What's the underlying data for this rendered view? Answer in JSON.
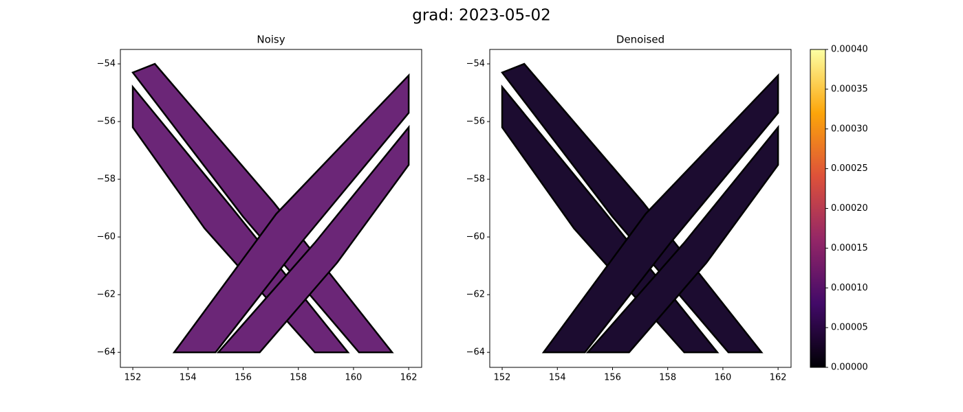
{
  "title": "grad: 2023-05-02",
  "chart_data": [
    {
      "type": "swath",
      "title": "Noisy",
      "color": "#6b2677",
      "xlim": [
        151.55,
        162.47
      ],
      "ylim": [
        -64.52,
        -53.5
      ],
      "xticks": [
        152,
        154,
        156,
        158,
        160,
        162
      ],
      "yticks": [
        {
          "value": -54,
          "label": "−54"
        },
        {
          "value": -56,
          "label": "−56"
        },
        {
          "value": -58,
          "label": "−58"
        },
        {
          "value": -60,
          "label": "−60"
        },
        {
          "value": -62,
          "label": "−62"
        },
        {
          "value": -64,
          "label": "−64"
        }
      ],
      "swaths": [
        {
          "x": [
            152,
            152.8,
            157.1,
            161.4,
            160.2,
            156.0
          ],
          "y": [
            -54.3,
            -54,
            -58.8,
            -64,
            -64,
            -59.3
          ]
        },
        {
          "x": [
            152,
            155.6,
            159.8,
            158.6,
            154.6,
            152
          ],
          "y": [
            -54.8,
            -59.0,
            -64,
            -64,
            -59.7,
            -56.2
          ]
        },
        {
          "x": [
            153.5,
            157.2,
            162,
            162,
            158.1,
            155.0
          ],
          "y": [
            -64,
            -59.2,
            -54.4,
            -55.7,
            -60.2,
            -64
          ]
        },
        {
          "x": [
            155.1,
            158.6,
            162,
            162,
            159.4,
            156.6
          ],
          "y": [
            -64,
            -60.2,
            -56.2,
            -57.5,
            -60.9,
            -64
          ]
        }
      ]
    },
    {
      "type": "swath",
      "title": "Denoised",
      "color": "#1c0c30",
      "xlim": [
        151.55,
        162.47
      ],
      "ylim": [
        -64.52,
        -53.5
      ],
      "xticks": [
        152,
        154,
        156,
        158,
        160,
        162
      ],
      "yticks": [
        {
          "value": -54,
          "label": "−54"
        },
        {
          "value": -56,
          "label": "−56"
        },
        {
          "value": -58,
          "label": "−58"
        },
        {
          "value": -60,
          "label": "−60"
        },
        {
          "value": -62,
          "label": "−62"
        },
        {
          "value": -64,
          "label": "−64"
        }
      ],
      "swaths": [
        {
          "x": [
            152,
            152.8,
            157.1,
            161.4,
            160.2,
            156.0
          ],
          "y": [
            -54.3,
            -54,
            -58.8,
            -64,
            -64,
            -59.3
          ]
        },
        {
          "x": [
            152,
            155.6,
            159.8,
            158.6,
            154.6,
            152
          ],
          "y": [
            -54.8,
            -59.0,
            -64,
            -64,
            -59.7,
            -56.2
          ]
        },
        {
          "x": [
            153.5,
            157.2,
            162,
            162,
            158.1,
            155.0
          ],
          "y": [
            -64,
            -59.2,
            -54.4,
            -55.7,
            -60.2,
            -64
          ]
        },
        {
          "x": [
            155.1,
            158.6,
            162,
            162,
            159.4,
            156.6
          ],
          "y": [
            -64,
            -60.2,
            -56.2,
            -57.5,
            -60.9,
            -64
          ]
        }
      ]
    },
    {
      "type": "colorbar",
      "ylim": [
        0,
        0.0004
      ],
      "yticks": [
        {
          "value": 0,
          "label": "0.00000"
        },
        {
          "value": 5e-05,
          "label": "0.00005"
        },
        {
          "value": 0.0001,
          "label": "0.00010"
        },
        {
          "value": 0.00015,
          "label": "0.00015"
        },
        {
          "value": 0.0002,
          "label": "0.00020"
        },
        {
          "value": 0.00025,
          "label": "0.00025"
        },
        {
          "value": 0.0003,
          "label": "0.00030"
        },
        {
          "value": 0.00035,
          "label": "0.00035"
        },
        {
          "value": 0.0004,
          "label": "0.00040"
        }
      ],
      "colors": [
        "#000004",
        "#420a68",
        "#932667",
        "#dd513a",
        "#fca50a",
        "#fcffa4"
      ]
    }
  ]
}
